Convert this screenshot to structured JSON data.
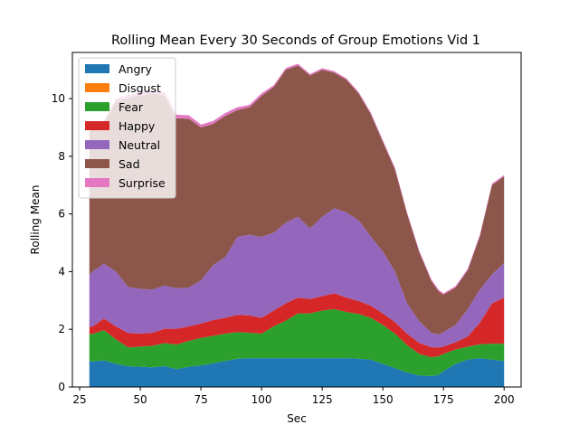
{
  "chart_data": {
    "type": "area",
    "title": "Rolling Mean Every 30 Seconds of Group Emotions Vid 1",
    "xlabel": "Sec",
    "ylabel": "Rolling Mean",
    "xlim": [
      22,
      207
    ],
    "ylim": [
      0,
      11.6
    ],
    "xticks": [
      25,
      50,
      75,
      100,
      125,
      150,
      175,
      200
    ],
    "yticks": [
      0,
      2,
      4,
      6,
      8,
      10
    ],
    "legend_position": "top-left",
    "stacked": true,
    "x": [
      29,
      30,
      35,
      40,
      45,
      50,
      55,
      60,
      65,
      70,
      75,
      80,
      85,
      90,
      95,
      100,
      105,
      110,
      115,
      120,
      125,
      130,
      135,
      140,
      145,
      150,
      155,
      160,
      165,
      170,
      173,
      175,
      180,
      185,
      190,
      195,
      200
    ],
    "series": [
      {
        "name": "Angry",
        "color": "#1f77b4",
        "values": [
          0.9,
          0.88,
          0.92,
          0.8,
          0.72,
          0.7,
          0.68,
          0.72,
          0.62,
          0.7,
          0.75,
          0.82,
          0.9,
          0.98,
          1.0,
          1.0,
          1.0,
          1.0,
          1.0,
          1.0,
          1.0,
          1.0,
          1.0,
          0.98,
          0.95,
          0.8,
          0.65,
          0.5,
          0.4,
          0.38,
          0.42,
          0.55,
          0.8,
          0.95,
          1.0,
          0.95,
          0.9
        ]
      },
      {
        "name": "Disgust",
        "color": "#ff7f0e",
        "values": [
          0,
          0,
          0,
          0,
          0,
          0,
          0,
          0,
          0,
          0,
          0,
          0,
          0,
          0,
          0,
          0,
          0,
          0,
          0,
          0,
          0,
          0,
          0,
          0,
          0,
          0,
          0,
          0,
          0,
          0,
          0,
          0,
          0,
          0,
          0,
          0,
          0
        ]
      },
      {
        "name": "Fear",
        "color": "#2ca02c",
        "values": [
          0.95,
          0.95,
          1.05,
          0.85,
          0.65,
          0.7,
          0.75,
          0.8,
          0.85,
          0.9,
          0.95,
          0.95,
          0.95,
          0.92,
          0.88,
          0.85,
          1.1,
          1.3,
          1.55,
          1.55,
          1.65,
          1.7,
          1.6,
          1.55,
          1.45,
          1.35,
          1.2,
          0.95,
          0.75,
          0.65,
          0.65,
          0.6,
          0.5,
          0.45,
          0.48,
          0.55,
          0.6
        ]
      },
      {
        "name": "Happy",
        "color": "#d62728",
        "values": [
          0.25,
          0.25,
          0.4,
          0.45,
          0.5,
          0.45,
          0.45,
          0.5,
          0.55,
          0.5,
          0.5,
          0.55,
          0.55,
          0.6,
          0.6,
          0.55,
          0.55,
          0.6,
          0.55,
          0.5,
          0.5,
          0.55,
          0.5,
          0.45,
          0.42,
          0.4,
          0.4,
          0.4,
          0.38,
          0.35,
          0.3,
          0.25,
          0.25,
          0.35,
          0.75,
          1.4,
          1.6
        ]
      },
      {
        "name": "Neutral",
        "color": "#9467bd",
        "values": [
          1.8,
          1.9,
          1.9,
          1.9,
          1.6,
          1.55,
          1.5,
          1.5,
          1.4,
          1.35,
          1.5,
          1.9,
          2.1,
          2.7,
          2.8,
          2.8,
          2.7,
          2.8,
          2.8,
          2.45,
          2.75,
          2.95,
          2.95,
          2.8,
          2.4,
          2.15,
          1.75,
          1.05,
          0.75,
          0.5,
          0.45,
          0.5,
          0.6,
          0.95,
          1.15,
          1.0,
          1.2
        ]
      },
      {
        "name": "Sad",
        "color": "#8c564b",
        "values": [
          4.95,
          5.0,
          4.9,
          5.9,
          6.55,
          6.7,
          6.8,
          6.6,
          5.9,
          5.85,
          5.3,
          4.9,
          4.9,
          4.4,
          4.42,
          4.9,
          5.05,
          5.3,
          5.25,
          5.3,
          5.1,
          4.7,
          4.6,
          4.4,
          4.25,
          3.8,
          3.55,
          3.1,
          2.4,
          1.8,
          1.5,
          1.3,
          1.3,
          1.35,
          1.85,
          3.1,
          3.0
        ]
      },
      {
        "name": "Surprise",
        "color": "#e377c2",
        "values": [
          0,
          0,
          0.05,
          0.1,
          0.1,
          0.1,
          0.1,
          0.1,
          0.12,
          0.12,
          0.1,
          0.1,
          0.1,
          0.1,
          0.08,
          0.08,
          0.06,
          0.06,
          0.06,
          0.05,
          0.05,
          0.05,
          0.05,
          0.05,
          0.05,
          0.05,
          0.05,
          0.05,
          0.05,
          0.05,
          0.05,
          0.05,
          0.05,
          0.05,
          0.05,
          0.05,
          0.05
        ]
      }
    ]
  }
}
